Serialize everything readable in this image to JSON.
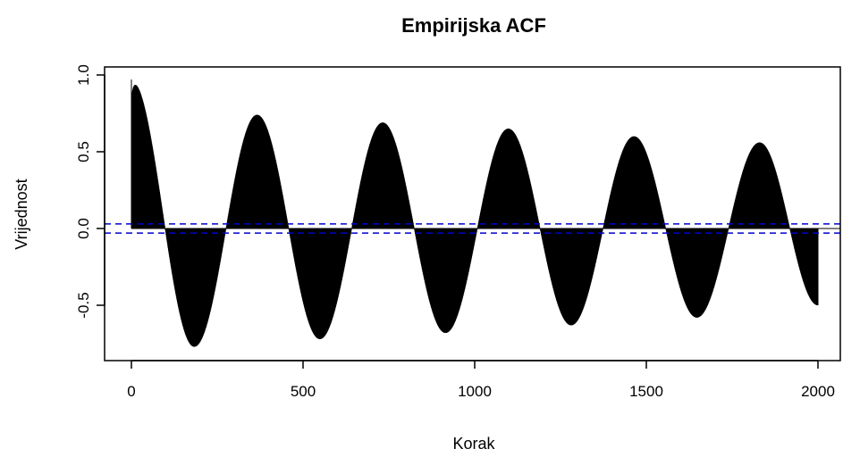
{
  "chart_data": {
    "type": "bar",
    "title": "Empirijska ACF",
    "xlabel": "Korak",
    "ylabel": "Vrijednost",
    "xlim": [
      -80,
      2000
    ],
    "ylim": [
      -0.82,
      1.02
    ],
    "xticks": [
      0,
      500,
      1000,
      1500,
      2000
    ],
    "xtick_labels": [
      "0",
      "500",
      "1000",
      "1500",
      "2000"
    ],
    "yticks": [
      -0.5,
      0.0,
      0.5,
      1.0
    ],
    "ytick_labels": [
      "-0.5",
      "0.0",
      "0.5",
      "1.0"
    ],
    "confidence_bounds": [
      0.03,
      -0.03
    ],
    "bar_color": "#000000",
    "bound_color": "#0000cc",
    "peaks": [
      {
        "lag": 0,
        "value": 0.97
      },
      {
        "lag": 183,
        "value": -0.77
      },
      {
        "lag": 366,
        "value": 0.74
      },
      {
        "lag": 549,
        "value": -0.72
      },
      {
        "lag": 732,
        "value": 0.69
      },
      {
        "lag": 915,
        "value": -0.68
      },
      {
        "lag": 1098,
        "value": 0.65
      },
      {
        "lag": 1281,
        "value": -0.63
      },
      {
        "lag": 1464,
        "value": 0.6
      },
      {
        "lag": 1647,
        "value": -0.58
      },
      {
        "lag": 1830,
        "value": 0.56
      },
      {
        "lag": 2000,
        "value": -0.5
      }
    ],
    "grid": false,
    "legend": "none"
  }
}
